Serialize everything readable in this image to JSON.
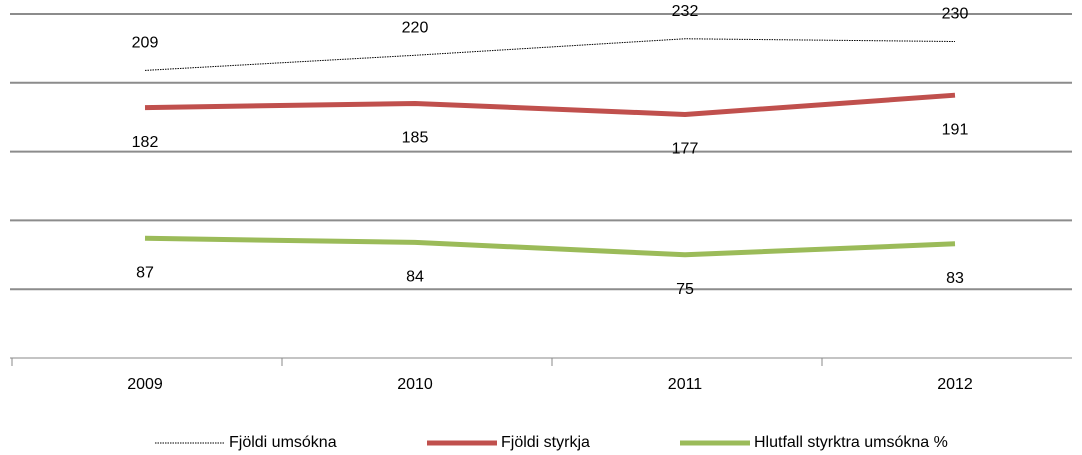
{
  "chart_data": {
    "type": "line",
    "categories": [
      "2009",
      "2010",
      "2011",
      "2012"
    ],
    "series": [
      {
        "name": "Fjöldi umsókna",
        "color": "#000000",
        "values": [
          209,
          220,
          232,
          230
        ]
      },
      {
        "name": "Fjöldi styrkja",
        "color": "#c0504d",
        "values": [
          182,
          185,
          177,
          191
        ]
      },
      {
        "name": "Hlutfall styrktra umsókna %",
        "color": "#9bbb59",
        "values": [
          87,
          84,
          75,
          83
        ]
      }
    ],
    "ylim": [
      0,
      250
    ],
    "yticks": [
      0,
      50,
      100,
      150,
      200,
      250
    ],
    "grid": true,
    "legend": "bottom"
  }
}
